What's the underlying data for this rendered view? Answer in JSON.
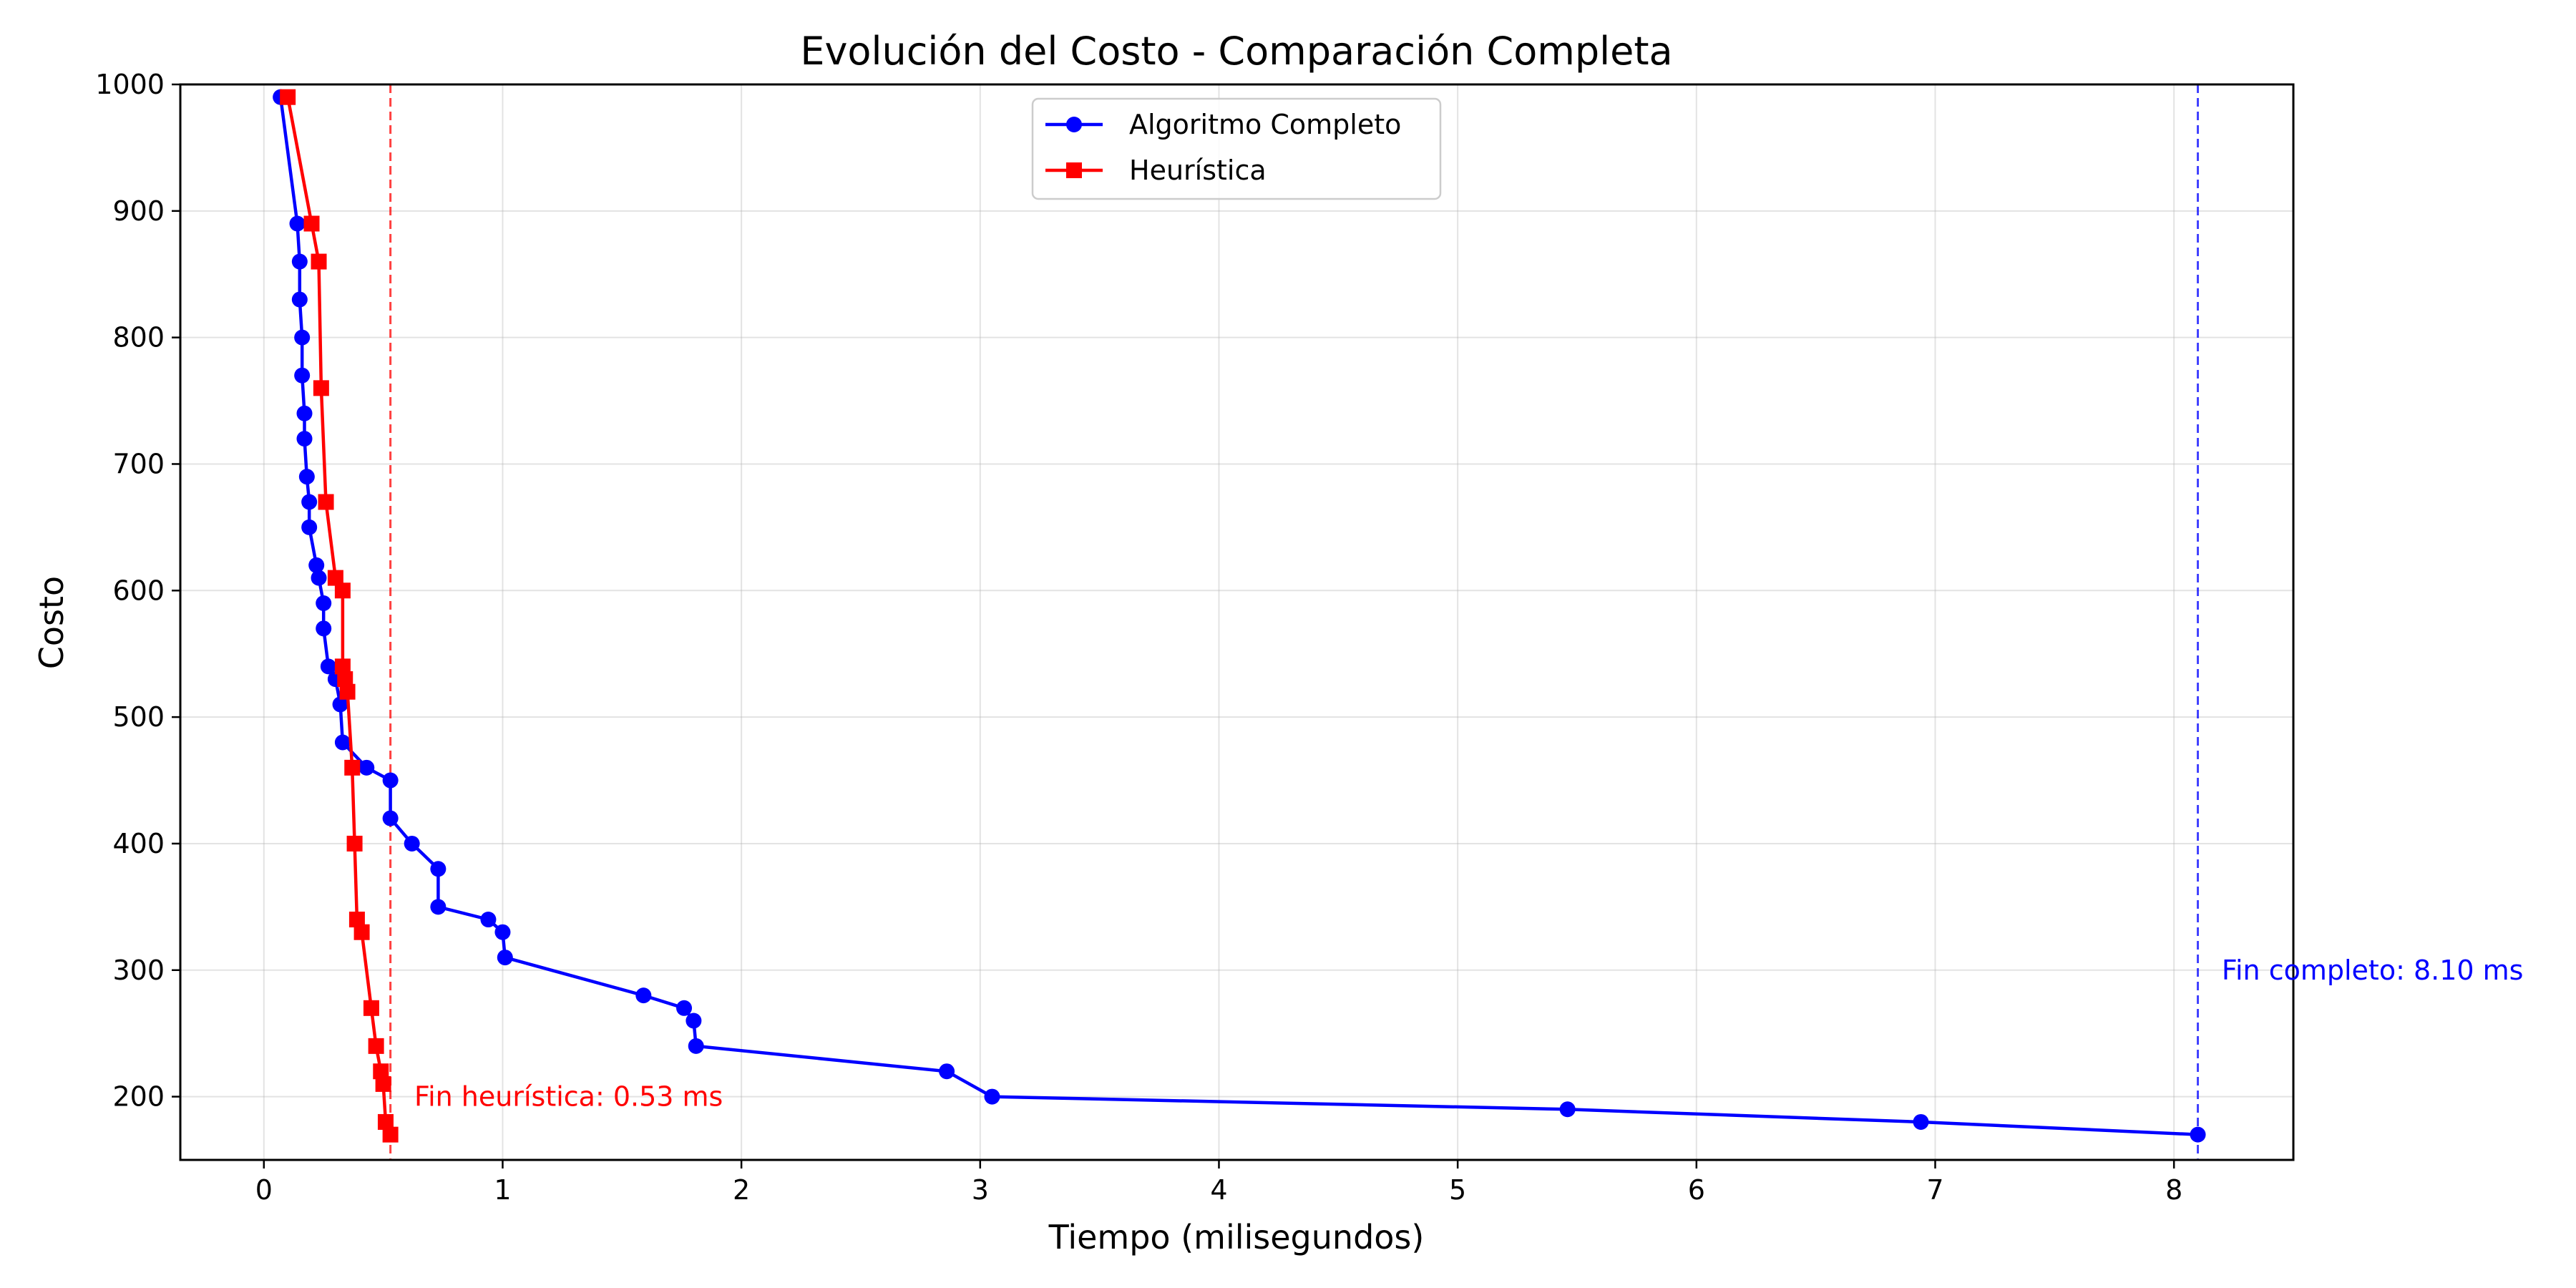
{
  "chart_data": {
    "type": "line",
    "title": "Evolución del Costo - Comparación Completa",
    "xlabel": "Tiempo (milisegundos)",
    "ylabel": "Costo",
    "xlim": [
      -0.35,
      8.5
    ],
    "ylim": [
      150,
      1000
    ],
    "xticks": [
      0,
      1,
      2,
      3,
      4,
      5,
      6,
      7,
      8
    ],
    "yticks": [
      200,
      300,
      400,
      500,
      600,
      700,
      800,
      900,
      1000
    ],
    "grid": true,
    "legend_position": "top-center",
    "series": [
      {
        "name": "Algoritmo Completo",
        "color": "#0000ff",
        "marker": "circle",
        "x": [
          0.07,
          0.14,
          0.15,
          0.15,
          0.16,
          0.16,
          0.17,
          0.17,
          0.18,
          0.19,
          0.19,
          0.22,
          0.23,
          0.25,
          0.25,
          0.27,
          0.3,
          0.32,
          0.33,
          0.43,
          0.53,
          0.53,
          0.62,
          0.73,
          0.73,
          0.94,
          1.0,
          1.01,
          1.59,
          1.76,
          1.8,
          1.81,
          2.86,
          3.05,
          5.46,
          6.94,
          8.1
        ],
        "y": [
          990,
          890,
          860,
          830,
          800,
          770,
          740,
          720,
          690,
          670,
          650,
          620,
          610,
          590,
          570,
          540,
          530,
          510,
          480,
          460,
          450,
          420,
          400,
          380,
          350,
          340,
          330,
          310,
          280,
          270,
          260,
          240,
          220,
          200,
          190,
          180,
          170
        ]
      },
      {
        "name": "Heurística",
        "color": "#ff0000",
        "marker": "square",
        "x": [
          0.1,
          0.2,
          0.23,
          0.24,
          0.26,
          0.3,
          0.33,
          0.33,
          0.34,
          0.35,
          0.37,
          0.38,
          0.39,
          0.41,
          0.45,
          0.47,
          0.49,
          0.5,
          0.51,
          0.53
        ],
        "y": [
          990,
          890,
          860,
          760,
          670,
          610,
          600,
          540,
          530,
          520,
          460,
          400,
          340,
          330,
          270,
          240,
          220,
          210,
          180,
          170
        ]
      }
    ],
    "vlines": [
      {
        "x": 0.53,
        "color": "#ff0000"
      },
      {
        "x": 8.1,
        "color": "#0000ff"
      }
    ],
    "annotations": [
      {
        "text": "Fin heurística: 0.53 ms",
        "x": 0.63,
        "y": 200,
        "color": "#ff0000"
      },
      {
        "text": "Fin completo: 8.10 ms",
        "x": 8.2,
        "y": 300,
        "color": "#0000ff"
      }
    ]
  }
}
